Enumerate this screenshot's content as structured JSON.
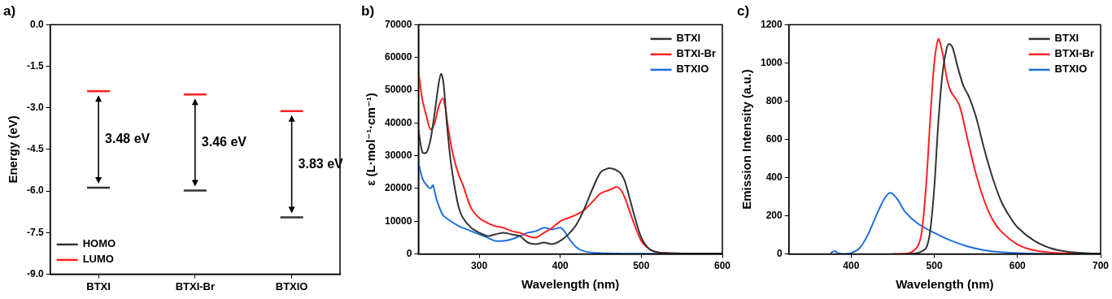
{
  "chart_data": [
    {
      "type": "energy_level",
      "title": "a)",
      "categories": [
        "BTXI",
        "BTXI-Br",
        "BTXIO"
      ],
      "y_label": "Energy (eV)",
      "series": [
        {
          "name": "HOMO",
          "color": "#333333",
          "values": [
            -5.88,
            -5.98,
            -6.95
          ]
        },
        {
          "name": "LUMO",
          "color": "#ff2020",
          "values": [
            -2.4,
            -2.52,
            -3.12
          ]
        }
      ],
      "annotations": [
        "3.48 eV",
        "3.46 eV",
        "3.83 eV"
      ],
      "marker": "line",
      "ylim": [
        -9.0,
        0.0
      ],
      "yticks": [
        {
          "value": -9.0,
          "label": "-9.0"
        },
        -7.5,
        {
          "value": -6.0,
          "label": "-6.0"
        },
        -4.5,
        {
          "value": -3.0,
          "label": "-3.0"
        },
        -1.5,
        {
          "value": 0.0,
          "label": "0.0"
        }
      ],
      "legend": "bottom-left",
      "grid": false
    },
    {
      "type": "line",
      "title": "b)",
      "x_label": "Wavelength (nm)",
      "y_label": "ε (L·mol⁻¹·cm⁻¹)",
      "series": [
        {
          "name": "BTXI",
          "color": "#333333",
          "x": [
            225,
            230,
            235,
            240,
            245,
            250,
            253,
            256,
            260,
            265,
            270,
            275,
            280,
            290,
            300,
            310,
            320,
            330,
            340,
            350,
            360,
            370,
            380,
            390,
            400,
            410,
            420,
            430,
            440,
            450,
            460,
            465,
            470,
            475,
            480,
            490,
            500,
            510,
            520,
            540,
            600
          ],
          "values": [
            38000,
            31000,
            31000,
            35000,
            43000,
            52000,
            55000,
            52000,
            40000,
            28000,
            20000,
            14000,
            11000,
            8000,
            6500,
            5500,
            6000,
            6500,
            6000,
            5500,
            3500,
            3000,
            3500,
            3000,
            4000,
            6000,
            9000,
            14000,
            20000,
            25000,
            26200,
            26000,
            25500,
            24500,
            22000,
            13000,
            5000,
            1500,
            500,
            200,
            100
          ]
        },
        {
          "name": "BTXI-Br",
          "color": "#ff2020",
          "x": [
            225,
            230,
            235,
            240,
            245,
            250,
            255,
            258,
            262,
            268,
            275,
            280,
            290,
            300,
            310,
            320,
            330,
            340,
            350,
            360,
            370,
            380,
            390,
            400,
            410,
            420,
            430,
            440,
            450,
            460,
            465,
            470,
            475,
            480,
            490,
            500,
            510,
            520,
            540,
            600
          ],
          "values": [
            56000,
            47000,
            42000,
            38000,
            40000,
            45000,
            47500,
            45000,
            38000,
            30000,
            24000,
            21000,
            14000,
            11000,
            9500,
            8500,
            8000,
            7000,
            6500,
            5500,
            5000,
            6500,
            8000,
            10000,
            11000,
            12000,
            13500,
            16000,
            18500,
            19500,
            20000,
            20500,
            19500,
            17000,
            10000,
            4000,
            1500,
            500,
            200,
            100
          ]
        },
        {
          "name": "BTXIO",
          "color": "#1e6fe0",
          "x": [
            225,
            230,
            235,
            240,
            243,
            247,
            255,
            265,
            275,
            285,
            300,
            310,
            320,
            330,
            340,
            350,
            360,
            370,
            380,
            390,
            400,
            405,
            410,
            420,
            430,
            450,
            500,
            600
          ],
          "values": [
            28000,
            23000,
            21000,
            20000,
            21000,
            17000,
            12000,
            10000,
            8500,
            7500,
            6000,
            5000,
            4000,
            4000,
            4500,
            5500,
            6500,
            7000,
            8000,
            7500,
            8000,
            7000,
            5000,
            2000,
            800,
            300,
            100,
            0
          ]
        }
      ],
      "xlim": [
        225,
        600
      ],
      "xticks": [
        300,
        400,
        500,
        600
      ],
      "ylim": [
        0,
        70000
      ],
      "yticks": [
        0,
        10000,
        20000,
        30000,
        40000,
        50000,
        60000,
        70000
      ],
      "legend": "top-right",
      "grid": false
    },
    {
      "type": "line",
      "title": "c)",
      "x_label": "Wavelength (nm)",
      "y_label": "Emission Intensity (a.u.)",
      "series": [
        {
          "name": "BTXI",
          "color": "#333333",
          "x": [
            470,
            480,
            490,
            495,
            500,
            505,
            510,
            515,
            518,
            522,
            528,
            535,
            542,
            550,
            560,
            570,
            580,
            590,
            600,
            620,
            640,
            660,
            680,
            700
          ],
          "values": [
            0,
            5,
            30,
            120,
            350,
            700,
            950,
            1080,
            1100,
            1080,
            980,
            880,
            820,
            720,
            550,
            400,
            280,
            200,
            140,
            70,
            30,
            12,
            5,
            2
          ]
        },
        {
          "name": "BTXI-Br",
          "color": "#ff2020",
          "x": [
            450,
            470,
            480,
            485,
            490,
            495,
            500,
            505,
            510,
            515,
            520,
            530,
            540,
            550,
            560,
            570,
            580,
            600,
            620,
            650,
            700
          ],
          "values": [
            0,
            5,
            40,
            120,
            350,
            700,
            1000,
            1125,
            1050,
            920,
            850,
            780,
            600,
            420,
            280,
            180,
            120,
            50,
            20,
            5,
            0
          ]
        },
        {
          "name": "BTXIO",
          "color": "#1e6fe0",
          "x": [
            375,
            380,
            384,
            390,
            400,
            410,
            420,
            430,
            440,
            447,
            455,
            465,
            480,
            500,
            520,
            540,
            560,
            580,
            600,
            650,
            700
          ],
          "values": [
            5,
            15,
            5,
            0,
            5,
            30,
            100,
            200,
            290,
            320,
            290,
            220,
            160,
            110,
            70,
            40,
            20,
            10,
            5,
            0,
            0
          ]
        }
      ],
      "xlim": [
        325,
        700
      ],
      "xticks": [
        400,
        500,
        600,
        700
      ],
      "ylim": [
        0,
        1200
      ],
      "yticks": [
        0,
        200,
        400,
        600,
        800,
        1000,
        1200
      ],
      "legend": "top-right",
      "grid": false
    }
  ]
}
